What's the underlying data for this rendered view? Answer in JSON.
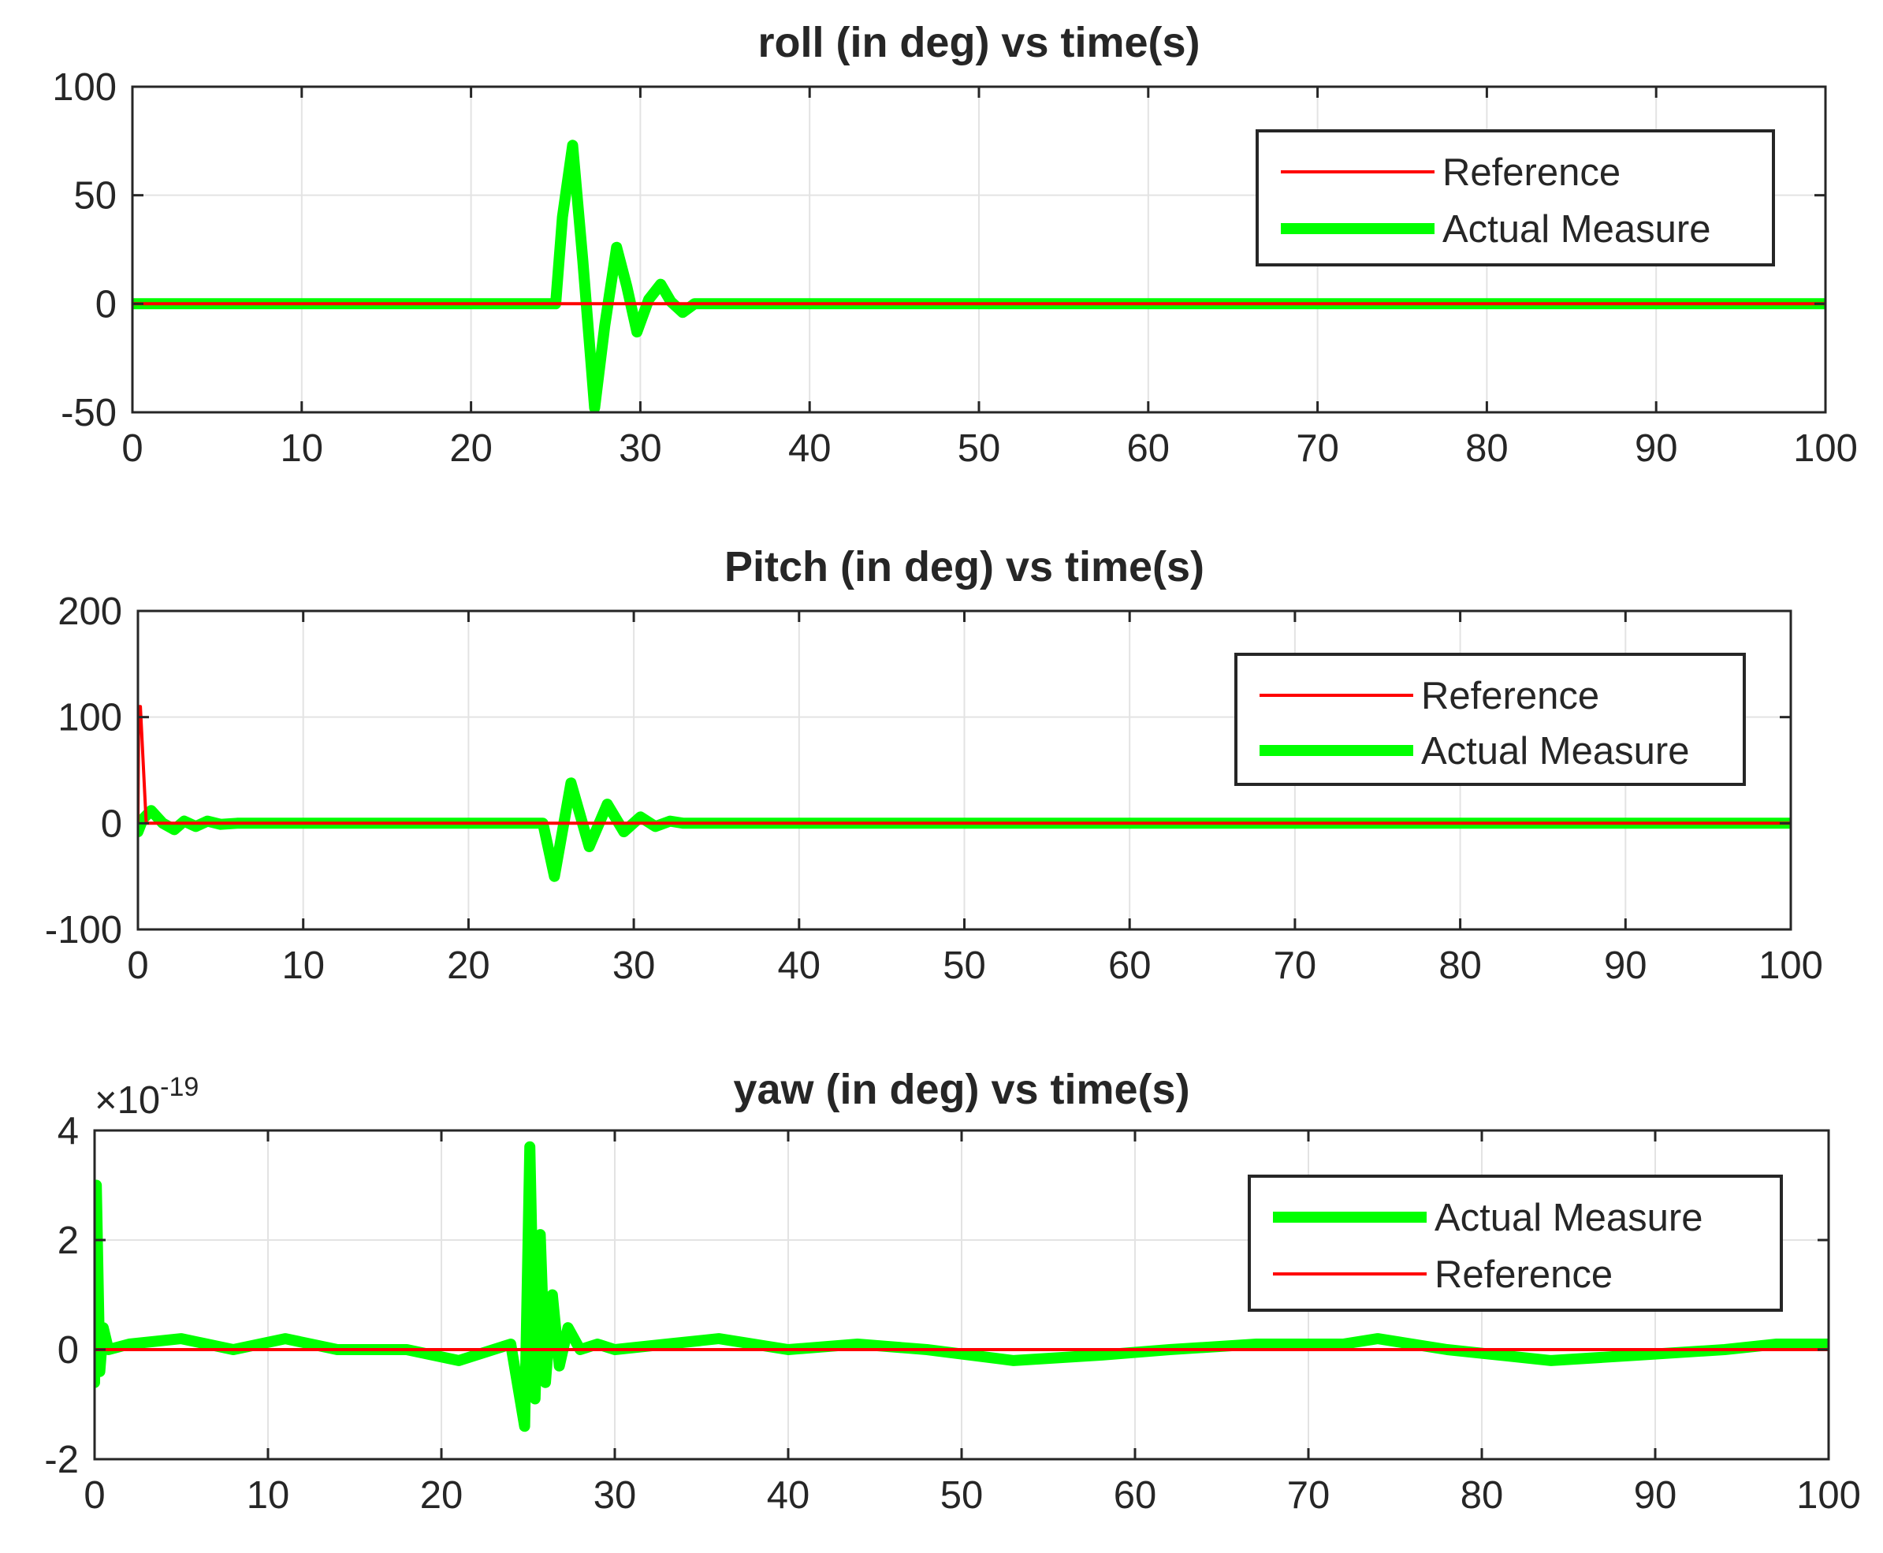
{
  "chart_data": [
    {
      "type": "line",
      "title": "roll (in deg) vs time(s)",
      "xlabel": "",
      "ylabel": "",
      "xlim": [
        0,
        100
      ],
      "ylim": [
        -50,
        100
      ],
      "x_ticks": [
        "0",
        "10",
        "20",
        "30",
        "40",
        "50",
        "60",
        "70",
        "80",
        "90",
        "100"
      ],
      "y_ticks": [
        "-50",
        "0",
        "50",
        "100"
      ],
      "grid": true,
      "legend_position": "top-right",
      "legend": [
        "Reference",
        "Actual Measure"
      ],
      "series": [
        {
          "name": "Reference",
          "color": "#ff0000",
          "x": [
            0,
            100
          ],
          "y": [
            0,
            0
          ]
        },
        {
          "name": "Actual Measure",
          "color": "#00ff00",
          "x": [
            0,
            25,
            25.4,
            26,
            26.6,
            27.3,
            27.9,
            28.6,
            29.2,
            29.8,
            30.5,
            31.2,
            31.8,
            32.5,
            33.2,
            34,
            40,
            60,
            80,
            100
          ],
          "y": [
            0,
            0,
            40,
            73,
            20,
            -48,
            -10,
            26,
            8,
            -13,
            2,
            9,
            1,
            -4,
            0,
            0,
            0,
            0,
            0,
            0
          ]
        }
      ]
    },
    {
      "type": "line",
      "title": "Pitch (in deg) vs time(s)",
      "xlabel": "",
      "ylabel": "",
      "xlim": [
        0,
        100
      ],
      "ylim": [
        -100,
        200
      ],
      "x_ticks": [
        "0",
        "10",
        "20",
        "30",
        "40",
        "50",
        "60",
        "70",
        "80",
        "90",
        "100"
      ],
      "y_ticks": [
        "-100",
        "0",
        "100",
        "200"
      ],
      "grid": true,
      "legend_position": "top-right",
      "legend": [
        "Reference",
        "Actual Measure"
      ],
      "series": [
        {
          "name": "Reference",
          "color": "#ff0000",
          "x": [
            0,
            0.05,
            0.15,
            0.5,
            100
          ],
          "y": [
            0,
            110,
            110,
            0,
            0
          ]
        },
        {
          "name": "Actual Measure",
          "color": "#00ff00",
          "x": [
            0,
            0.3,
            0.8,
            1.5,
            2.2,
            2.8,
            3.5,
            4.2,
            5,
            6,
            24.5,
            25.2,
            26.2,
            27.3,
            28.4,
            29.4,
            30.4,
            31.3,
            32.2,
            33,
            40,
            60,
            80,
            100
          ],
          "y": [
            -8,
            4,
            12,
            0,
            -6,
            2,
            -3,
            2,
            -1,
            0,
            0,
            -50,
            38,
            -22,
            18,
            -8,
            6,
            -3,
            2,
            0,
            0,
            0,
            0,
            0
          ]
        }
      ]
    },
    {
      "type": "line",
      "title": "yaw (in deg) vs time(s)",
      "xlabel": "",
      "ylabel": "",
      "xlim": [
        0,
        100
      ],
      "ylim": [
        -2,
        4
      ],
      "y_scale_label": "×10",
      "y_scale_exponent": "-19",
      "x_ticks": [
        "0",
        "10",
        "20",
        "30",
        "40",
        "50",
        "60",
        "70",
        "80",
        "90",
        "100"
      ],
      "y_ticks": [
        "-2",
        "0",
        "2",
        "4"
      ],
      "grid": true,
      "legend_position": "top-right",
      "legend": [
        "Actual Measure",
        "Reference"
      ],
      "series": [
        {
          "name": "Actual Measure",
          "color": "#00ff00",
          "x": [
            0,
            0.1,
            0.3,
            0.5,
            0.8,
            2,
            5,
            8,
            11,
            14,
            18,
            21,
            24,
            24.8,
            25.1,
            25.4,
            25.7,
            26,
            26.4,
            26.8,
            27.3,
            28,
            29,
            30,
            33,
            36,
            40,
            44,
            48,
            53,
            58,
            62,
            67,
            72,
            74,
            78,
            84,
            89,
            94,
            97,
            100
          ],
          "y": [
            -0.6,
            3.0,
            -0.4,
            0.4,
            0,
            0.1,
            0.2,
            0,
            0.2,
            0,
            0,
            -0.2,
            0.1,
            -1.4,
            3.7,
            -0.9,
            2.1,
            -0.6,
            1.0,
            -0.3,
            0.4,
            0,
            0.1,
            0,
            0.1,
            0.2,
            0,
            0.1,
            0,
            -0.2,
            -0.1,
            0,
            0.1,
            0.1,
            0.2,
            0,
            -0.2,
            -0.1,
            0,
            0.1,
            0.1
          ]
        },
        {
          "name": "Reference",
          "color": "#ff0000",
          "x": [
            0,
            100
          ],
          "y": [
            0,
            0
          ]
        }
      ]
    }
  ]
}
